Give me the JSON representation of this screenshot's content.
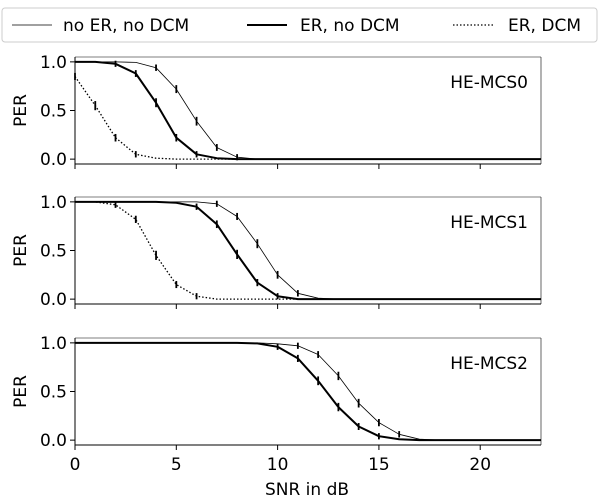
{
  "chart_data": {
    "type": "line",
    "xlabel": "SNR in dB",
    "ylabel": "PER",
    "xlim": [
      0,
      23
    ],
    "ylim": [
      -0.05,
      1.05
    ],
    "xticks": [
      0,
      5,
      10,
      15,
      20
    ],
    "yticks": [
      0.0,
      0.5,
      1.0
    ],
    "ytick_labels": [
      "0.0",
      "0.5",
      "1.0"
    ],
    "legend": {
      "placement": "top",
      "entries": [
        "no ER, no DCM",
        "ER, no DCM",
        "ER, DCM"
      ]
    },
    "panels": [
      {
        "label": "HE-MCS0",
        "series": [
          {
            "name": "no ER, no DCM",
            "style": "thin",
            "x": [
              0,
              1,
              2,
              3,
              4,
              5,
              6,
              7,
              8,
              9,
              10,
              12,
              15,
              20,
              23
            ],
            "y": [
              1.0,
              1.0,
              1.0,
              0.995,
              0.94,
              0.72,
              0.39,
              0.12,
              0.02,
              0.0,
              0.0,
              0.0,
              0.0,
              0.0,
              0.0
            ]
          },
          {
            "name": "ER, no DCM",
            "style": "thick",
            "x": [
              0,
              1,
              2,
              3,
              4,
              5,
              6,
              7,
              8,
              9,
              10,
              12,
              15,
              20,
              23
            ],
            "y": [
              1.0,
              1.0,
              0.98,
              0.88,
              0.58,
              0.22,
              0.05,
              0.01,
              0.0,
              0.0,
              0.0,
              0.0,
              0.0,
              0.0,
              0.0
            ]
          },
          {
            "name": "ER, DCM",
            "style": "dotted",
            "x": [
              0,
              1,
              2,
              3,
              4,
              5,
              6,
              7,
              8,
              10,
              15,
              20,
              23
            ],
            "y": [
              0.85,
              0.55,
              0.22,
              0.05,
              0.01,
              0.0,
              0.0,
              0.0,
              0.0,
              0.0,
              0.0,
              0.0,
              0.0
            ]
          }
        ]
      },
      {
        "label": "HE-MCS1",
        "series": [
          {
            "name": "no ER, no DCM",
            "style": "thin",
            "x": [
              0,
              2,
              4,
              5,
              6,
              7,
              8,
              9,
              10,
              11,
              12,
              13,
              15,
              20,
              23
            ],
            "y": [
              1.0,
              1.0,
              1.0,
              1.0,
              1.0,
              0.98,
              0.85,
              0.57,
              0.25,
              0.06,
              0.01,
              0.0,
              0.0,
              0.0,
              0.0
            ]
          },
          {
            "name": "ER, no DCM",
            "style": "thick",
            "x": [
              0,
              2,
              4,
              5,
              6,
              7,
              8,
              9,
              10,
              11,
              12,
              15,
              20,
              23
            ],
            "y": [
              1.0,
              1.0,
              1.0,
              0.99,
              0.95,
              0.77,
              0.46,
              0.17,
              0.03,
              0.0,
              0.0,
              0.0,
              0.0,
              0.0
            ]
          },
          {
            "name": "ER, DCM",
            "style": "dotted",
            "x": [
              0,
              1,
              2,
              3,
              4,
              5,
              6,
              7,
              8,
              10,
              15,
              20,
              23
            ],
            "y": [
              1.0,
              1.0,
              0.97,
              0.82,
              0.45,
              0.15,
              0.03,
              0.0,
              0.0,
              0.0,
              0.0,
              0.0,
              0.0
            ]
          }
        ]
      },
      {
        "label": "HE-MCS2",
        "series": [
          {
            "name": "no ER, no DCM",
            "style": "thin",
            "x": [
              0,
              5,
              8,
              9,
              10,
              11,
              12,
              13,
              14,
              15,
              16,
              17,
              18,
              20,
              23
            ],
            "y": [
              1.0,
              1.0,
              1.0,
              1.0,
              0.99,
              0.97,
              0.88,
              0.66,
              0.38,
              0.18,
              0.06,
              0.01,
              0.0,
              0.0,
              0.0
            ]
          },
          {
            "name": "ER, no DCM",
            "style": "thick",
            "x": [
              0,
              5,
              8,
              9,
              10,
              11,
              12,
              13,
              14,
              15,
              16,
              17,
              18,
              20,
              23
            ],
            "y": [
              1.0,
              1.0,
              1.0,
              0.995,
              0.96,
              0.84,
              0.61,
              0.34,
              0.14,
              0.04,
              0.01,
              0.0,
              0.0,
              0.0,
              0.0
            ]
          }
        ]
      }
    ]
  }
}
